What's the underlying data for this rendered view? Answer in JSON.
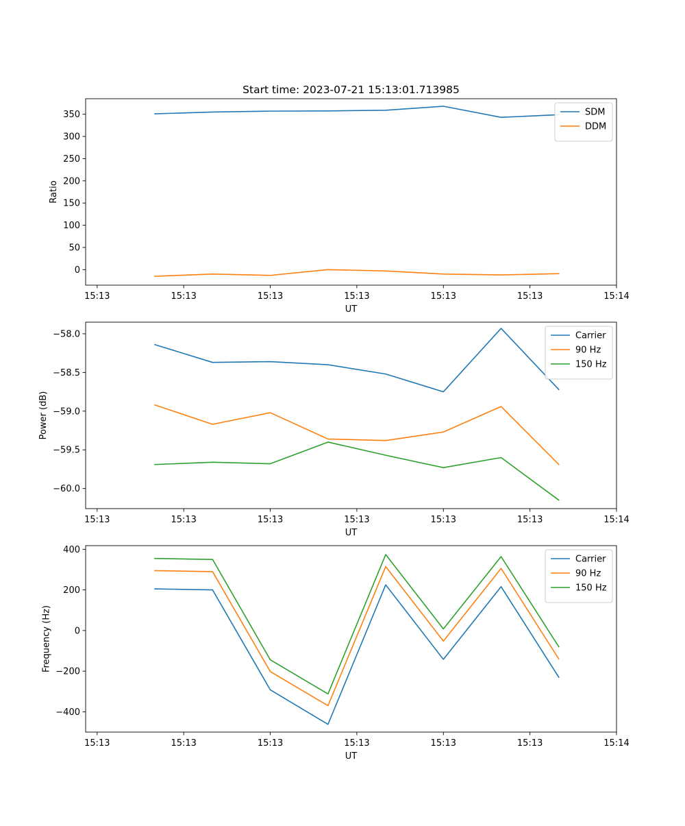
{
  "figure_title": "Start time: 2023-07-21 15:13:01.713985",
  "colors": {
    "blue": "#1f77b4",
    "orange": "#ff7f0e",
    "green": "#2ca02c"
  },
  "chart_data": [
    {
      "type": "line",
      "title": "Start time: 2023-07-21 15:13:01.713985",
      "xlabel": "UT",
      "ylabel": "Ratio",
      "xlim": [
        -0.2,
        9.0
      ],
      "ylim": [
        -35,
        385
      ],
      "x": [
        1,
        2,
        3,
        4,
        5,
        6,
        7,
        8
      ],
      "x_ticks": [
        0,
        1.5,
        3,
        4.5,
        6,
        7.5,
        9
      ],
      "x_tick_labels": [
        "15:13",
        "15:13",
        "15:13",
        "15:13",
        "15:13",
        "15:13",
        "15:14"
      ],
      "y_ticks": [
        0,
        50,
        100,
        150,
        200,
        250,
        300,
        350
      ],
      "y_tick_labels": [
        "0",
        "50",
        "100",
        "150",
        "200",
        "250",
        "300",
        "350"
      ],
      "legend_position": "top-right",
      "series": [
        {
          "name": "SDM",
          "color": "#1f77b4",
          "values": [
            351,
            355,
            357,
            357.5,
            359,
            368,
            343,
            349
          ]
        },
        {
          "name": "DDM",
          "color": "#ff7f0e",
          "values": [
            -15,
            -10,
            -13,
            0,
            -3,
            -10,
            -12,
            -9
          ]
        }
      ]
    },
    {
      "type": "line",
      "title": "",
      "xlabel": "UT",
      "ylabel": "Power (dB)",
      "xlim": [
        -0.2,
        9.0
      ],
      "ylim": [
        -60.26,
        -57.85
      ],
      "x": [
        1,
        2,
        3,
        4,
        5,
        6,
        7,
        8
      ],
      "x_ticks": [
        0,
        1.5,
        3,
        4.5,
        6,
        7.5,
        9
      ],
      "x_tick_labels": [
        "15:13",
        "15:13",
        "15:13",
        "15:13",
        "15:13",
        "15:13",
        "15:14"
      ],
      "y_ticks": [
        -60.0,
        -59.5,
        -59.0,
        -58.5,
        -58.0
      ],
      "y_tick_labels": [
        "−60.0",
        "−59.5",
        "−59.0",
        "−58.5",
        "−58.0"
      ],
      "legend_position": "top-right",
      "series": [
        {
          "name": "Carrier",
          "color": "#1f77b4",
          "values": [
            -58.14,
            -58.37,
            -58.36,
            -58.4,
            -58.52,
            -58.75,
            -57.93,
            -58.72
          ]
        },
        {
          "name": "90 Hz",
          "color": "#ff7f0e",
          "values": [
            -58.92,
            -59.17,
            -59.02,
            -59.36,
            -59.38,
            -59.27,
            -58.94,
            -59.69
          ]
        },
        {
          "name": "150 Hz",
          "color": "#2ca02c",
          "values": [
            -59.69,
            -59.66,
            -59.68,
            -59.4,
            -59.57,
            -59.73,
            -59.6,
            -60.15
          ]
        }
      ]
    },
    {
      "type": "line",
      "title": "",
      "xlabel": "UT",
      "ylabel": "Frequency (Hz)",
      "xlim": [
        -0.2,
        9.0
      ],
      "ylim": [
        -500,
        418
      ],
      "x": [
        1,
        2,
        3,
        4,
        5,
        6,
        7,
        8
      ],
      "x_ticks": [
        0,
        1.5,
        3,
        4.5,
        6,
        7.5,
        9
      ],
      "x_tick_labels": [
        "15:13",
        "15:13",
        "15:13",
        "15:13",
        "15:13",
        "15:13",
        "15:14"
      ],
      "y_ticks": [
        -400,
        -200,
        0,
        200,
        400
      ],
      "y_tick_labels": [
        "−400",
        "−200",
        "0",
        "200",
        "400"
      ],
      "legend_position": "top-right",
      "series": [
        {
          "name": "Carrier",
          "color": "#1f77b4",
          "values": [
            205,
            200,
            -292,
            -462,
            225,
            -142,
            216,
            -230
          ]
        },
        {
          "name": "90 Hz",
          "color": "#ff7f0e",
          "values": [
            295,
            290,
            -202,
            -370,
            315,
            -52,
            306,
            -140
          ]
        },
        {
          "name": "150 Hz",
          "color": "#2ca02c",
          "values": [
            355,
            350,
            -144,
            -312,
            374,
            8,
            364,
            -80
          ]
        }
      ]
    }
  ]
}
